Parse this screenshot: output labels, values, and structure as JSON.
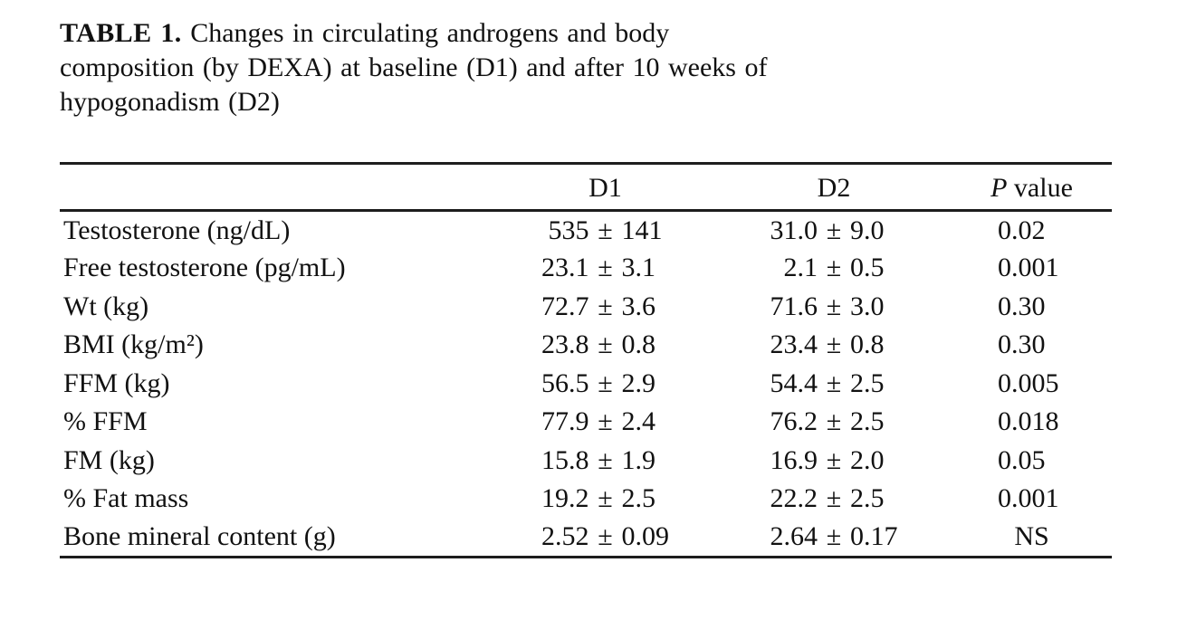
{
  "colors": {
    "background": "#ffffff",
    "text": "#111111",
    "rule": "#1d1d1d"
  },
  "caption": {
    "label": "TABLE 1.",
    "lines": [
      "Changes in circulating androgens and body",
      "composition (by DEXA) at baseline (D1) and after 10 weeks of",
      "hypogonadism (D2)"
    ]
  },
  "table": {
    "headers": {
      "parameter": "",
      "d1": "D1",
      "d2": "D2",
      "p_italic": "P",
      "p_word": "value"
    },
    "rows": [
      {
        "label": "Testosterone (ng/dL)",
        "d1": "535 ± 141",
        "d2": "31.0 ± 9.0",
        "p": "0.02"
      },
      {
        "label": "Free testosterone (pg/mL)",
        "d1": "23.1 ± 3.1",
        "d2": "2.1 ± 0.5",
        "p": "0.001"
      },
      {
        "label": "Wt (kg)",
        "d1": "72.7 ± 3.6",
        "d2": "71.6 ± 3.0",
        "p": "0.30"
      },
      {
        "label": "BMI (kg/m²)",
        "d1": "23.8 ± 0.8",
        "d2": "23.4 ± 0.8",
        "p": "0.30"
      },
      {
        "label": "FFM (kg)",
        "d1": "56.5 ± 2.9",
        "d2": "54.4 ± 2.5",
        "p": "0.005"
      },
      {
        "label": "% FFM",
        "d1": "77.9 ± 2.4",
        "d2": "76.2 ± 2.5",
        "p": "0.018"
      },
      {
        "label": "FM (kg)",
        "d1": "15.8 ± 1.9",
        "d2": "16.9 ± 2.0",
        "p": "0.05"
      },
      {
        "label": "% Fat mass",
        "d1": "19.2 ± 2.5",
        "d2": "22.2 ± 2.5",
        "p": "0.001"
      },
      {
        "label": "Bone mineral content (g)",
        "d1": "2.52 ± 0.09",
        "d2": "2.64 ± 0.17",
        "p": "NS"
      }
    ]
  },
  "chart_data": {
    "type": "table",
    "title": "TABLE 1. Changes in circulating androgens and body composition (by DEXA) at baseline (D1) and after 10 weeks of hypogonadism (D2)",
    "columns": [
      "",
      "D1",
      "D2",
      "P value"
    ],
    "rows": [
      [
        "Testosterone (ng/dL)",
        "535 ± 141",
        "31.0 ± 9.0",
        "0.02"
      ],
      [
        "Free testosterone (pg/mL)",
        "23.1 ± 3.1",
        "2.1 ± 0.5",
        "0.001"
      ],
      [
        "Wt (kg)",
        "72.7 ± 3.6",
        "71.6 ± 3.0",
        "0.30"
      ],
      [
        "BMI (kg/m²)",
        "23.8 ± 0.8",
        "23.4 ± 0.8",
        "0.30"
      ],
      [
        "FFM (kg)",
        "56.5 ± 2.9",
        "54.4 ± 2.5",
        "0.005"
      ],
      [
        "% FFM",
        "77.9 ± 2.4",
        "76.2 ± 2.5",
        "0.018"
      ],
      [
        "FM (kg)",
        "15.8 ± 1.9",
        "16.9 ± 2.0",
        "0.05"
      ],
      [
        "% Fat mass",
        "19.2 ± 2.5",
        "22.2 ± 2.5",
        "0.001"
      ],
      [
        "Bone mineral content (g)",
        "2.52 ± 0.09",
        "2.64 ± 0.17",
        "NS"
      ]
    ]
  }
}
